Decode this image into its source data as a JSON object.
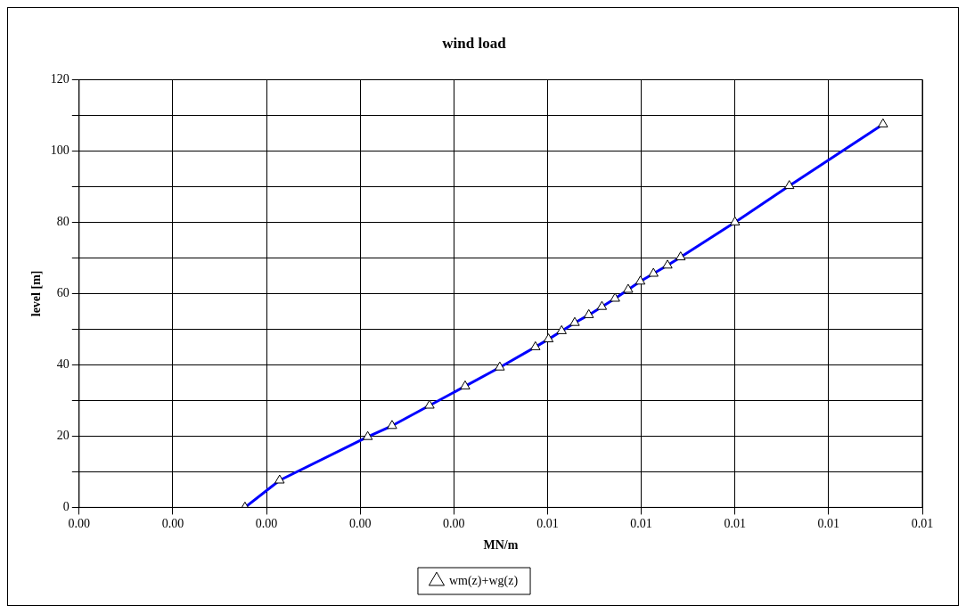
{
  "chart_data": {
    "type": "line",
    "title": "wind load",
    "xlabel": "MN/m",
    "ylabel": "level [m]",
    "xlim": [
      0,
      0.009
    ],
    "xticks": [
      {
        "value": 0,
        "label": "0.00"
      },
      {
        "value": 0.001,
        "label": "0.00"
      },
      {
        "value": 0.002,
        "label": "0.00"
      },
      {
        "value": 0.003,
        "label": "0.00"
      },
      {
        "value": 0.004,
        "label": "0.00"
      },
      {
        "value": 0.005,
        "label": "0.01"
      },
      {
        "value": 0.006,
        "label": "0.01"
      },
      {
        "value": 0.007,
        "label": "0.01"
      },
      {
        "value": 0.008,
        "label": "0.01"
      },
      {
        "value": 0.009,
        "label": "0.01"
      }
    ],
    "ylim": [
      0,
      120
    ],
    "yticks": [
      0,
      {
        "value": 10,
        "label": null
      },
      20,
      {
        "value": 30,
        "label": null
      },
      40,
      {
        "value": 50,
        "label": null
      },
      60,
      {
        "value": 70,
        "label": null
      },
      80,
      {
        "value": 90,
        "label": null
      },
      100,
      {
        "value": 110,
        "label": null
      },
      120
    ],
    "grid": true,
    "legend": "bottom",
    "marker": "triangle",
    "line_style": "solid",
    "series": [
      {
        "name": "wm(z)+wg(z)",
        "color": "#0000ff",
        "x": [
          0.00177,
          0.00214,
          0.00308,
          0.00334,
          0.00374,
          0.00412,
          0.00449,
          0.00487,
          0.00501,
          0.00515,
          0.00529,
          0.00544,
          0.00558,
          0.00572,
          0.00586,
          0.00599,
          0.00613,
          0.00628,
          0.00642,
          0.007,
          0.00758,
          0.00858
        ],
        "values": [
          0,
          7.6,
          19.8,
          22.9,
          28.6,
          34,
          39.3,
          45,
          47.2,
          49.5,
          51.8,
          54,
          56.3,
          58.6,
          61.1,
          63.4,
          65.6,
          67.9,
          70.2,
          80,
          90.2,
          107.5
        ]
      }
    ]
  }
}
